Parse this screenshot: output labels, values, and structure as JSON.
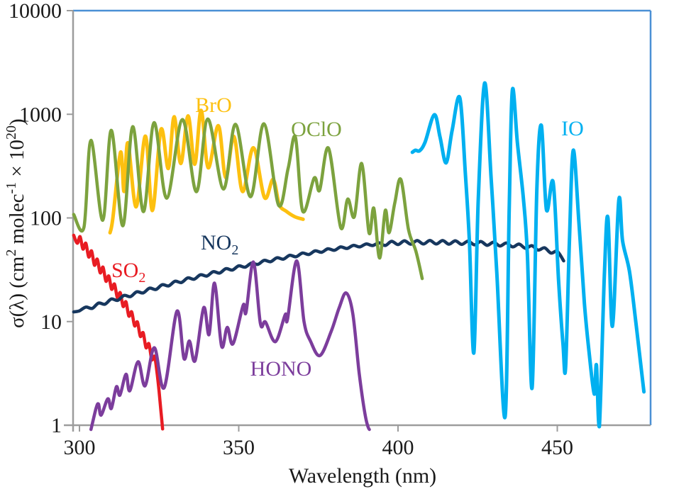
{
  "chart_data": {
    "type": "line",
    "title": "",
    "xlabel": "Wavelength (nm)",
    "ylabel_tokens": [
      {
        "t": "σ(λ) (cm"
      },
      {
        "t": "2",
        "sup": true
      },
      {
        "t": " molec"
      },
      {
        "t": "-1",
        "sup": true
      },
      {
        "t": " × 10"
      },
      {
        "t": "20",
        "sup": true
      },
      {
        "t": ")"
      }
    ],
    "x_ticks": [
      300,
      350,
      400,
      450
    ],
    "y_ticks": [
      1,
      10,
      100,
      1000,
      10000
    ],
    "x_range_nm": [
      298,
      480
    ],
    "y_range_log": [
      1,
      10000
    ],
    "y_scale": "log10",
    "grid": false,
    "legend_position": "inline-labels",
    "colors": {
      "axis": "#9c9c9c",
      "border": "#4a90d5",
      "text": "#1a1a1a"
    },
    "series": [
      {
        "name": "SO2",
        "color": "#e81c23",
        "width": 4.5,
        "label_tokens": [
          {
            "t": "SO"
          },
          {
            "t": "2",
            "sub": true
          }
        ],
        "label_xy": [
          157,
          391
        ],
        "label_anchor": "start",
        "points": [
          [
            298.2,
            68
          ],
          [
            299.3,
            57
          ],
          [
            300.2,
            66
          ],
          [
            301.1,
            50
          ],
          [
            302,
            57
          ],
          [
            302.9,
            42
          ],
          [
            303.8,
            48
          ],
          [
            304.7,
            35
          ],
          [
            305.6,
            40
          ],
          [
            306.5,
            29.5
          ],
          [
            307.4,
            33.5
          ],
          [
            308.3,
            24.5
          ],
          [
            309.2,
            27.5
          ],
          [
            310.1,
            20.5
          ],
          [
            311,
            23
          ],
          [
            311.9,
            17
          ],
          [
            312.8,
            19
          ],
          [
            313.7,
            14
          ],
          [
            314.6,
            15.5
          ],
          [
            315.5,
            11.3
          ],
          [
            316.4,
            12.4
          ],
          [
            317.3,
            9.1
          ],
          [
            318.2,
            9.9
          ],
          [
            319.1,
            7.2
          ],
          [
            320,
            7.8
          ],
          [
            320.9,
            5.6
          ],
          [
            321.8,
            6.1
          ],
          [
            322.7,
            4.3
          ],
          [
            323.6,
            4.6
          ],
          [
            324.4,
            3.1
          ],
          [
            325,
            2.1
          ],
          [
            325.6,
            1.35
          ],
          [
            326.1,
            0.92
          ]
        ]
      },
      {
        "name": "NO2",
        "color": "#17375e",
        "width": 4.5,
        "label_tokens": [
          {
            "t": "NO"
          },
          {
            "t": "2",
            "sub": true
          }
        ],
        "label_xy": [
          283,
          352
        ],
        "label_anchor": "start",
        "points": [
          [
            298.2,
            12.4
          ],
          [
            300,
            12.7
          ],
          [
            302,
            13.8
          ],
          [
            304,
            13.4
          ],
          [
            306,
            15.1
          ],
          [
            308,
            14.7
          ],
          [
            310,
            16.5
          ],
          [
            312,
            16.0
          ],
          [
            314,
            17.9
          ],
          [
            316,
            17.4
          ],
          [
            318,
            19.4
          ],
          [
            320,
            18.9
          ],
          [
            322,
            21.0
          ],
          [
            324,
            20.4
          ],
          [
            326,
            22.7
          ],
          [
            328,
            22.1
          ],
          [
            330,
            24.5
          ],
          [
            332,
            23.8
          ],
          [
            334,
            26.4
          ],
          [
            336,
            25.6
          ],
          [
            338,
            28.3
          ],
          [
            340,
            27.5
          ],
          [
            342,
            30.3
          ],
          [
            344,
            29.4
          ],
          [
            346,
            32.4
          ],
          [
            348,
            31.4
          ],
          [
            350,
            34.5
          ],
          [
            352,
            33.5
          ],
          [
            354,
            36.7
          ],
          [
            356,
            35.6
          ],
          [
            358,
            39.0
          ],
          [
            360,
            37.8
          ],
          [
            362,
            41.3
          ],
          [
            364,
            40.0
          ],
          [
            366,
            43.6
          ],
          [
            368,
            42.2
          ],
          [
            370,
            45.9
          ],
          [
            372,
            44.4
          ],
          [
            374,
            48.2
          ],
          [
            376,
            46.6
          ],
          [
            378,
            50.4
          ],
          [
            380,
            48.7
          ],
          [
            382,
            52.5
          ],
          [
            384,
            50.7
          ],
          [
            386,
            54.4
          ],
          [
            388,
            52.5
          ],
          [
            390,
            56.1
          ],
          [
            392,
            54.1
          ],
          [
            394,
            57.5
          ],
          [
            396,
            54.2
          ],
          [
            398,
            59.5
          ],
          [
            400,
            55.3
          ],
          [
            402,
            60.2
          ],
          [
            404,
            55.8
          ],
          [
            406,
            60.5
          ],
          [
            408,
            56.0
          ],
          [
            410,
            60.6
          ],
          [
            412,
            56.0
          ],
          [
            414,
            60.5
          ],
          [
            416,
            55.8
          ],
          [
            418,
            60.2
          ],
          [
            420,
            55.5
          ],
          [
            422,
            59.8
          ],
          [
            424,
            55.0
          ],
          [
            426,
            59.2
          ],
          [
            428,
            54.4
          ],
          [
            430,
            58.4
          ],
          [
            432,
            53.6
          ],
          [
            434,
            57.3
          ],
          [
            436,
            52.5
          ],
          [
            438,
            55.9
          ],
          [
            440,
            50.9
          ],
          [
            442,
            54.0
          ],
          [
            444,
            48.9
          ],
          [
            446,
            51.5
          ],
          [
            448,
            45.8
          ],
          [
            450,
            47.5
          ],
          [
            452,
            38.5
          ]
        ]
      },
      {
        "name": "BrO",
        "color": "#fdc010",
        "width": 5,
        "label_tokens": [
          {
            "t": "BrO"
          }
        ],
        "label_xy": [
          301,
          158
        ],
        "label_anchor": "middle",
        "points": [
          [
            309.6,
            72
          ],
          [
            310.5,
            100
          ],
          [
            312.9,
            430
          ],
          [
            314,
            180
          ],
          [
            315.2,
            530
          ],
          [
            317.8,
            128
          ],
          [
            320.7,
            615
          ],
          [
            322.9,
            118
          ],
          [
            325.6,
            715
          ],
          [
            327.9,
            300
          ],
          [
            329.7,
            945
          ],
          [
            331.8,
            335
          ],
          [
            334.1,
            965
          ],
          [
            336.2,
            330
          ],
          [
            338.2,
            1090
          ],
          [
            340.4,
            305
          ],
          [
            343.6,
            775
          ],
          [
            345.9,
            245
          ],
          [
            348.5,
            610
          ],
          [
            351.2,
            180
          ],
          [
            354.6,
            475
          ],
          [
            358.1,
            157
          ],
          [
            360.8,
            235
          ],
          [
            362.7,
            135
          ],
          [
            364.9,
            116
          ],
          [
            367.5,
            103
          ],
          [
            370.2,
            97
          ]
        ]
      },
      {
        "name": "OClO",
        "color": "#7ca23e",
        "width": 4.5,
        "label_tokens": [
          {
            "t": "OClO"
          }
        ],
        "label_xy": [
          446,
          192
        ],
        "label_anchor": "middle",
        "points": [
          [
            298.2,
            108
          ],
          [
            301.4,
            81
          ],
          [
            303.6,
            560
          ],
          [
            307.3,
            95
          ],
          [
            310,
            700
          ],
          [
            313.6,
            84
          ],
          [
            316.7,
            760
          ],
          [
            320.1,
            115
          ],
          [
            323.4,
            830
          ],
          [
            327.4,
            155
          ],
          [
            332.3,
            890
          ],
          [
            336.7,
            179
          ],
          [
            340.3,
            900
          ],
          [
            345.2,
            190
          ],
          [
            349,
            800
          ],
          [
            353.7,
            160
          ],
          [
            357.9,
            810
          ],
          [
            362.5,
            133
          ],
          [
            365.5,
            300
          ],
          [
            367.8,
            600
          ],
          [
            370.1,
            116
          ],
          [
            373.7,
            243
          ],
          [
            375.4,
            185
          ],
          [
            378.2,
            470
          ],
          [
            382,
            81
          ],
          [
            384.2,
            152
          ],
          [
            386.3,
            103
          ],
          [
            388.6,
            335
          ],
          [
            390.9,
            72
          ],
          [
            392.4,
            124
          ],
          [
            394.2,
            41
          ],
          [
            396,
            118
          ],
          [
            397.2,
            72
          ],
          [
            399,
            140
          ],
          [
            400.9,
            235
          ],
          [
            403.3,
            77
          ],
          [
            405.6,
            48
          ],
          [
            407.6,
            26
          ]
        ]
      },
      {
        "name": "HONO",
        "color": "#7c3d9c",
        "width": 4.5,
        "label_tokens": [
          {
            "t": "HONO"
          }
        ],
        "label_xy": [
          396,
          530
        ],
        "label_anchor": "middle",
        "points": [
          [
            303.6,
            0.9
          ],
          [
            305.2,
            1.45
          ],
          [
            306,
            1.6
          ],
          [
            306.8,
            1.25
          ],
          [
            308.9,
            1.8
          ],
          [
            310,
            1.45
          ],
          [
            311.6,
            2.35
          ],
          [
            312.7,
            1.95
          ],
          [
            314.6,
            3.1
          ],
          [
            315.8,
            2.15
          ],
          [
            318.4,
            4.1
          ],
          [
            320.6,
            2.4
          ],
          [
            323.5,
            5.6
          ],
          [
            326.6,
            2.3
          ],
          [
            330.6,
            12.6
          ],
          [
            332.8,
            4.4
          ],
          [
            334.5,
            6.5
          ],
          [
            336.3,
            4.2
          ],
          [
            339,
            13.6
          ],
          [
            340.7,
            7.5
          ],
          [
            342.4,
            23.5
          ],
          [
            344.6,
            5.8
          ],
          [
            346.4,
            8.8
          ],
          [
            348.2,
            6.1
          ],
          [
            351.4,
            14.4
          ],
          [
            352.3,
            12.3
          ],
          [
            354.6,
            37.5
          ],
          [
            356.8,
            9.6
          ],
          [
            358.4,
            9.9
          ],
          [
            361.5,
            6.4
          ],
          [
            364.6,
            11.7
          ],
          [
            365.3,
            10.5
          ],
          [
            368.2,
            38.5
          ],
          [
            370.5,
            10
          ],
          [
            372.5,
            6.5
          ],
          [
            375.5,
            4.7
          ],
          [
            379,
            8
          ],
          [
            381.5,
            13.5
          ],
          [
            383.7,
            18.9
          ],
          [
            385.8,
            12
          ],
          [
            387.8,
            3.2
          ],
          [
            389.6,
            1.3
          ],
          [
            391,
            0.85
          ]
        ]
      },
      {
        "name": "IO",
        "color": "#00b0f0",
        "width": 5,
        "label_tokens": [
          {
            "t": "IO"
          }
        ],
        "label_xy": [
          807,
          191
        ],
        "label_anchor": "middle",
        "points": [
          [
            404.5,
            430
          ],
          [
            405.5,
            450
          ],
          [
            406.8,
            445
          ],
          [
            408.5,
            540
          ],
          [
            411.4,
            990
          ],
          [
            413.2,
            600
          ],
          [
            415.1,
            340
          ],
          [
            417,
            700
          ],
          [
            419.4,
            1440
          ],
          [
            421.2,
            250
          ],
          [
            422.4,
            60
          ],
          [
            423.8,
            5
          ],
          [
            425.2,
            150
          ],
          [
            427.2,
            2000
          ],
          [
            429.2,
            250
          ],
          [
            431,
            30
          ],
          [
            433.6,
            1.2
          ],
          [
            434.9,
            120
          ],
          [
            435.9,
            1710
          ],
          [
            437.5,
            520
          ],
          [
            439.3,
            160
          ],
          [
            440.6,
            45
          ],
          [
            442.1,
            2.3
          ],
          [
            443.6,
            200
          ],
          [
            445,
            780
          ],
          [
            446.6,
            120
          ],
          [
            448.7,
            220
          ],
          [
            450.4,
            25
          ],
          [
            451.8,
            6
          ],
          [
            452.6,
            3.6
          ],
          [
            453.8,
            60
          ],
          [
            455,
            450
          ],
          [
            456.8,
            90
          ],
          [
            458.5,
            15
          ],
          [
            460,
            5
          ],
          [
            461.6,
            2
          ],
          [
            462.3,
            3.8
          ],
          [
            463.2,
            0.97
          ],
          [
            464.8,
            30
          ],
          [
            465.9,
            100
          ],
          [
            467.3,
            9
          ],
          [
            469.3,
            148
          ],
          [
            470.5,
            60
          ],
          [
            472.7,
            30
          ],
          [
            474.8,
            9
          ],
          [
            477.2,
            2.1
          ]
        ]
      }
    ]
  }
}
